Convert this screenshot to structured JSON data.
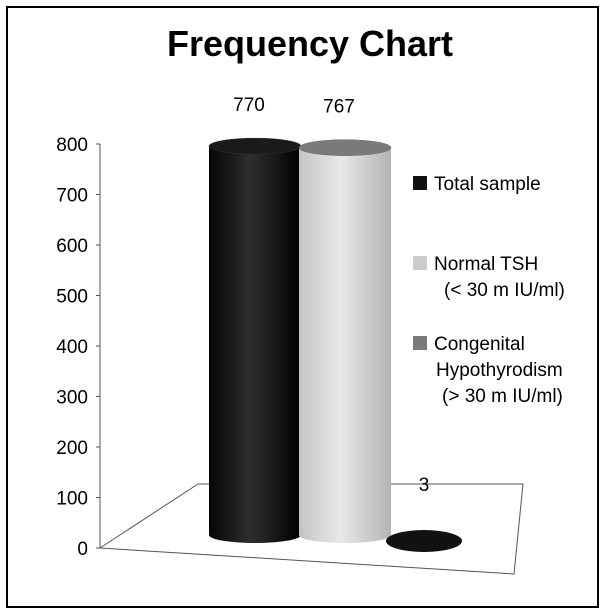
{
  "chart_data": {
    "type": "bar",
    "bar_shape": "cylinder-3d",
    "title": "Frequency Chart",
    "categories": [
      "Total sample",
      "Normal TSH (< 30 m IU/ml)",
      "Congenital Hypothyrodism (> 30 m IU/ml)"
    ],
    "values": [
      770,
      767,
      3
    ],
    "data_labels": [
      "770",
      "767",
      "3"
    ],
    "ylim": [
      0,
      800
    ],
    "yticks": [
      "0",
      "100",
      "200",
      "300",
      "400",
      "500",
      "600",
      "700",
      "800"
    ],
    "grid": false,
    "legend_position": "right",
    "legend": [
      {
        "lines": [
          "Total sample"
        ],
        "color": "#111111"
      },
      {
        "lines": [
          "Normal TSH",
          "(< 30 m IU/ml)"
        ],
        "color": "#cccccc"
      },
      {
        "lines": [
          "Congenital",
          "Hypothyrodism",
          "(> 30 m IU/ml)"
        ],
        "color": "#7a7a7a"
      }
    ],
    "colors": [
      "#111111",
      "#cccccc",
      "#7a7a7a"
    ]
  }
}
